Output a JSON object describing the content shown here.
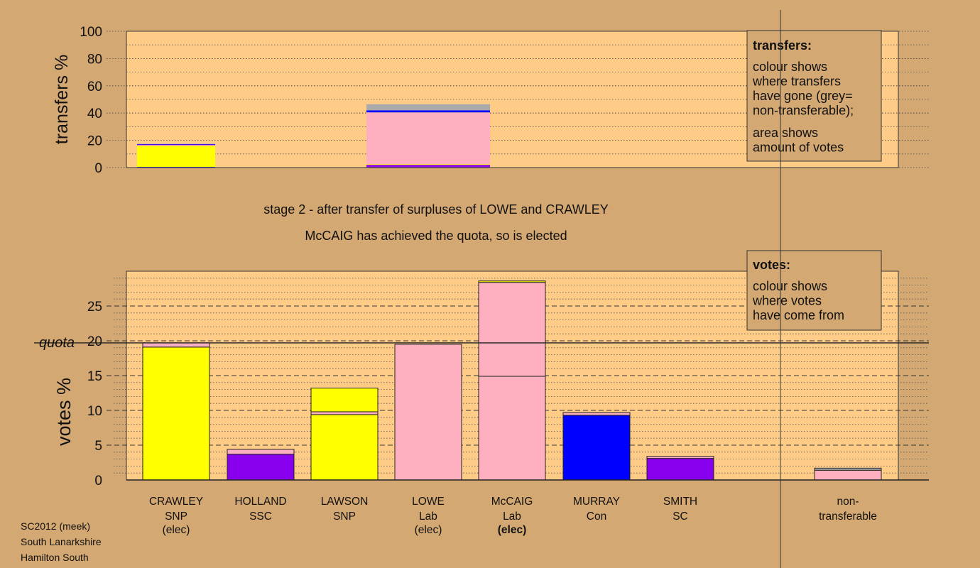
{
  "chart_data": [
    {
      "type": "bar",
      "panel": "transfers",
      "ylabel": "transfers %",
      "ylim": [
        0,
        100
      ],
      "yticks": [
        0,
        20,
        40,
        60,
        80,
        100
      ],
      "grid": "dotted",
      "bars": [
        {
          "source": "CRAWLEY",
          "segments": [
            {
              "to": "MURRAY",
              "value": 0.5,
              "color": "#0000ff"
            },
            {
              "to": "LAWSON",
              "value": 15.5,
              "color": "#ffff00"
            },
            {
              "to": "McCAIG",
              "value": 0.5,
              "color": "#ffb0c0"
            },
            {
              "to": "HOLLAND",
              "value": 0.4,
              "color": "#8800ee"
            },
            {
              "to": "SMITH",
              "value": 0.3,
              "color": "#0000ff"
            },
            {
              "to": "non-transferable",
              "value": 0.3,
              "color": "#aaaaaa"
            }
          ]
        },
        {
          "source": "LOWE",
          "segments": [
            {
              "to": "SMITH",
              "value": 1.0,
              "color": "#8800ee"
            },
            {
              "to": "HOLLAND",
              "value": 1.0,
              "color": "#8800ee"
            },
            {
              "to": "CRAWLEY/LAWSON",
              "value": 0.5,
              "color": "#ffff00"
            },
            {
              "to": "McCAIG",
              "value": 38.0,
              "color": "#ffb0c0"
            },
            {
              "to": "MURRAY",
              "value": 1.5,
              "color": "#0000ff"
            },
            {
              "to": "non-transferable",
              "value": 4.5,
              "color": "#aaaaaa"
            }
          ]
        }
      ],
      "legend": {
        "title": "transfers:",
        "lines_a": [
          "colour shows",
          "where transfers",
          "have gone (grey=",
          "non-transferable);"
        ],
        "lines_b": [
          "area shows",
          "amount of votes"
        ]
      }
    },
    {
      "type": "bar",
      "panel": "votes",
      "ylabel": "votes %",
      "ylim": [
        0,
        30
      ],
      "yticks": [
        0,
        5,
        10,
        15,
        20,
        25
      ],
      "quota": 19.7,
      "quota_label": "quota",
      "candidates": [
        {
          "name": "CRAWLEY",
          "party": "SNP",
          "status": "(elec)",
          "segments": [
            {
              "value": 19.1,
              "color": "#ffff00"
            },
            {
              "value": 0.6,
              "color": "#ffb0c0"
            }
          ]
        },
        {
          "name": "HOLLAND",
          "party": "SSC",
          "status": "",
          "segments": [
            {
              "value": 3.7,
              "color": "#8800ee"
            },
            {
              "value": 0.7,
              "color": "#ffb0c0"
            }
          ]
        },
        {
          "name": "LAWSON",
          "party": "SNP",
          "status": "",
          "segments": [
            {
              "value": 9.4,
              "color": "#ffff00"
            },
            {
              "value": 0.4,
              "color": "#ffb0c0"
            },
            {
              "value": 3.4,
              "color": "#ffff00"
            }
          ]
        },
        {
          "name": "LOWE",
          "party": "Lab",
          "status": "(elec)",
          "segments": [
            {
              "value": 19.5,
              "color": "#ffb0c0"
            }
          ]
        },
        {
          "name": "McCAIG",
          "party": "Lab",
          "status": "(elec)",
          "segments": [
            {
              "value": 14.9,
              "color": "#ffb0c0"
            },
            {
              "value": 13.5,
              "color": "#ffb0c0"
            },
            {
              "value": 0.2,
              "color": "#ffff00"
            }
          ]
        },
        {
          "name": "MURRAY",
          "party": "Con",
          "status": "",
          "segments": [
            {
              "value": 9.3,
              "color": "#0000ff"
            },
            {
              "value": 0.4,
              "color": "#ffb0c0"
            }
          ]
        },
        {
          "name": "SMITH",
          "party": "SC",
          "status": "",
          "segments": [
            {
              "value": 3.1,
              "color": "#8800ee"
            },
            {
              "value": 0.3,
              "color": "#ffb0c0"
            }
          ]
        }
      ],
      "nontransferable": {
        "label_line1": "non-",
        "label_line2": "transferable",
        "segments": [
          {
            "value": 1.4,
            "color": "#ffb0c0"
          },
          {
            "value": 0.3,
            "color": "#aaaaaa"
          }
        ]
      },
      "legend": {
        "title": "votes:",
        "lines": [
          "colour shows",
          "where votes",
          "have come from"
        ]
      }
    }
  ],
  "stage_title": "stage 2 - after transfer of surpluses of LOWE and CRAWLEY",
  "stage_subtitle": "McCAIG has achieved the quota, so is elected",
  "footer": [
    "SC2012 (meek)",
    "South Lanarkshire",
    "Hamilton South"
  ],
  "colors": {
    "background": "#d4a873",
    "plot_area": "#ffcc88",
    "yellow": "#ffff00",
    "pink": "#ffb0c0",
    "purple": "#8800ee",
    "blue": "#0000ff",
    "grey": "#aaaaaa"
  }
}
